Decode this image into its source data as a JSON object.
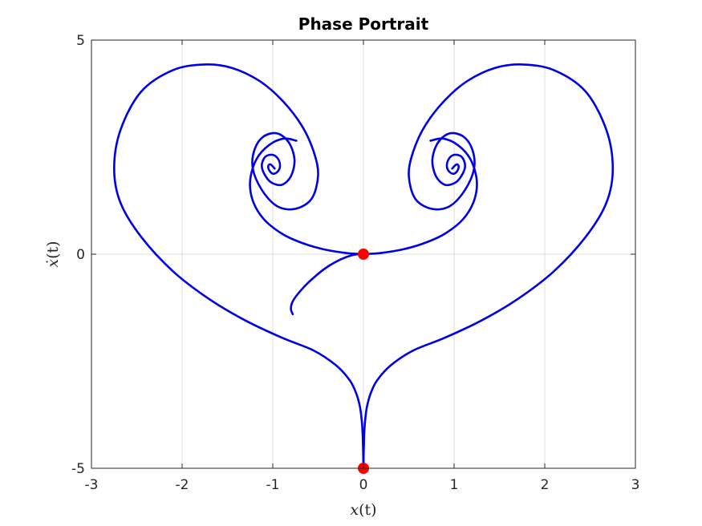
{
  "chart_data": {
    "type": "line",
    "title": "Phase Portrait",
    "xlabel": "x(t)",
    "ylabel": "ẋ(t)",
    "xlim": [
      -3,
      3
    ],
    "ylim": [
      -5,
      5
    ],
    "xticks": [
      -3,
      -2,
      -1,
      0,
      1,
      2,
      3
    ],
    "yticks": [
      -5,
      0,
      5
    ],
    "xtick_labels": [
      "-3",
      "-2",
      "-1",
      "0",
      "1",
      "2",
      "3"
    ],
    "ytick_labels": [
      "-5",
      "0",
      "5"
    ],
    "grid": true,
    "series": [
      {
        "color": "#0000e6",
        "style": "line",
        "x": [
          0.0,
          0.002,
          0.005,
          0.01,
          0.02,
          0.04,
          0.08,
          0.15,
          0.3,
          0.55,
          0.9,
          1.3,
          1.7,
          2.1,
          2.45,
          2.68,
          2.75,
          2.68,
          2.45,
          2.1,
          1.75,
          1.45,
          1.15,
          0.9,
          0.68,
          0.55,
          0.5,
          0.57,
          0.75,
          0.95,
          1.12,
          1.22,
          1.2,
          1.1,
          0.95,
          0.82,
          0.76,
          0.8,
          0.9,
          1.02,
          1.1,
          1.12,
          1.08,
          1.0,
          0.94,
          0.92,
          0.95,
          1.0,
          1.04,
          1.05,
          1.03,
          1.0,
          0.98
        ],
        "y": [
          -5.0,
          -4.75,
          -4.45,
          -4.15,
          -3.85,
          -3.55,
          -3.25,
          -2.95,
          -2.6,
          -2.25,
          -1.95,
          -1.55,
          -1.05,
          -0.4,
          0.4,
          1.2,
          2.0,
          2.9,
          3.8,
          4.3,
          4.43,
          4.35,
          4.05,
          3.6,
          3.0,
          2.4,
          1.85,
          1.3,
          1.06,
          1.12,
          1.5,
          2.0,
          2.45,
          2.75,
          2.82,
          2.6,
          2.2,
          1.82,
          1.62,
          1.68,
          1.9,
          2.1,
          2.28,
          2.32,
          2.22,
          2.05,
          1.92,
          1.88,
          1.96,
          2.06,
          2.1,
          2.05,
          2.0
        ]
      },
      {
        "color": "#0000e6",
        "style": "line",
        "x": [
          0.0,
          -0.002,
          -0.005,
          -0.01,
          -0.02,
          -0.04,
          -0.08,
          -0.15,
          -0.3,
          -0.55,
          -0.9,
          -1.3,
          -1.7,
          -2.1,
          -2.45,
          -2.68,
          -2.75,
          -2.68,
          -2.45,
          -2.1,
          -1.75,
          -1.45,
          -1.15,
          -0.9,
          -0.68,
          -0.55,
          -0.5,
          -0.57,
          -0.75,
          -0.95,
          -1.12,
          -1.22,
          -1.2,
          -1.1,
          -0.95,
          -0.82,
          -0.76,
          -0.8,
          -0.9,
          -1.02,
          -1.1,
          -1.12,
          -1.08,
          -1.0,
          -0.94,
          -0.92,
          -0.95,
          -1.0,
          -1.04,
          -1.05,
          -1.03,
          -1.0,
          -0.98
        ],
        "y": [
          -5.0,
          -4.75,
          -4.45,
          -4.15,
          -3.85,
          -3.55,
          -3.25,
          -2.95,
          -2.6,
          -2.25,
          -1.95,
          -1.55,
          -1.05,
          -0.4,
          0.4,
          1.2,
          2.0,
          2.9,
          3.8,
          4.3,
          4.43,
          4.35,
          4.05,
          3.6,
          3.0,
          2.4,
          1.85,
          1.3,
          1.06,
          1.12,
          1.5,
          2.0,
          2.45,
          2.75,
          2.82,
          2.6,
          2.2,
          1.82,
          1.62,
          1.68,
          1.9,
          2.1,
          2.28,
          2.32,
          2.22,
          2.05,
          1.92,
          1.88,
          1.96,
          2.06,
          2.1,
          2.05,
          2.0
        ]
      },
      {
        "color": "#0000e6",
        "style": "line",
        "x": [
          -0.04,
          -0.12,
          -0.25,
          -0.4,
          -0.55,
          -0.68,
          -0.78,
          -0.8,
          -0.78
        ],
        "y": [
          0.0,
          -0.02,
          -0.12,
          -0.3,
          -0.55,
          -0.82,
          -1.1,
          -1.28,
          -1.4
        ]
      },
      {
        "color": "#0000e6",
        "style": "line",
        "x": [
          0.0,
          -0.2,
          -0.45,
          -0.7,
          -0.9,
          -1.1,
          -1.22,
          -1.25,
          -1.18,
          -1.04,
          -0.88,
          -0.74
        ],
        "y": [
          0.0,
          0.03,
          0.12,
          0.28,
          0.48,
          0.82,
          1.25,
          1.72,
          2.22,
          2.55,
          2.7,
          2.65
        ]
      },
      {
        "color": "#0000e6",
        "style": "line",
        "x": [
          0.0,
          0.2,
          0.45,
          0.7,
          0.9,
          1.1,
          1.22,
          1.25,
          1.18,
          1.04,
          0.88,
          0.74
        ],
        "y": [
          0.0,
          0.03,
          0.12,
          0.28,
          0.48,
          0.82,
          1.25,
          1.72,
          2.22,
          2.55,
          2.7,
          2.65
        ]
      },
      {
        "color": "#ff0000",
        "style": "markers",
        "x": [
          0,
          0
        ],
        "y": [
          0,
          -5
        ]
      }
    ]
  }
}
